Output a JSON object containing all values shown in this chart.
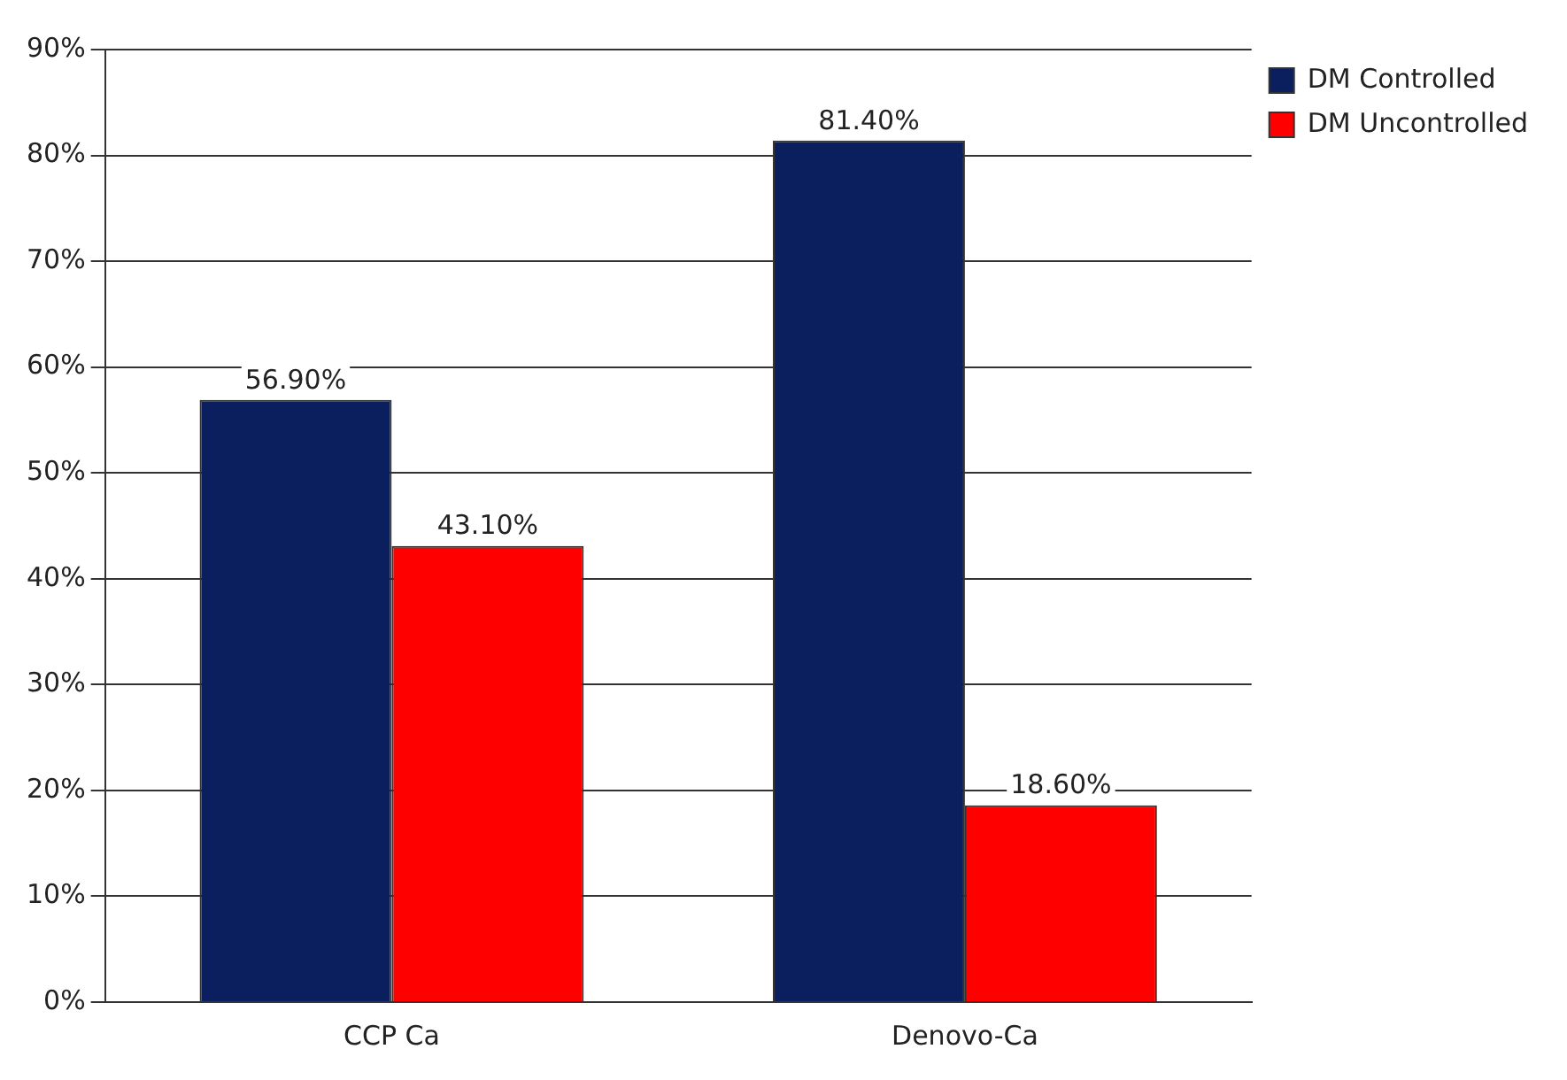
{
  "chart_data": {
    "type": "bar",
    "categories": [
      "CCP Ca",
      "Denovo-Ca"
    ],
    "series": [
      {
        "name": "DM Controlled",
        "color": "#0b1f5e",
        "values": [
          56.9,
          81.4
        ],
        "value_labels": [
          "56.90%",
          "81.40%"
        ]
      },
      {
        "name": "DM Uncontrolled",
        "color": "#ff0000",
        "values": [
          43.1,
          18.6
        ],
        "value_labels": [
          "43.10%",
          "18.60%"
        ]
      }
    ],
    "ylim": [
      0,
      90
    ],
    "yticks": [
      {
        "value": 0,
        "label": "0%"
      },
      {
        "value": 10,
        "label": "10%"
      },
      {
        "value": 20,
        "label": "20%"
      },
      {
        "value": 30,
        "label": "30%"
      },
      {
        "value": 40,
        "label": "40%"
      },
      {
        "value": 50,
        "label": "50%"
      },
      {
        "value": 60,
        "label": "60%"
      },
      {
        "value": 70,
        "label": "70%"
      },
      {
        "value": 80,
        "label": "80%"
      },
      {
        "value": 90,
        "label": "90%"
      }
    ],
    "grid": "y",
    "legend": "top right"
  }
}
